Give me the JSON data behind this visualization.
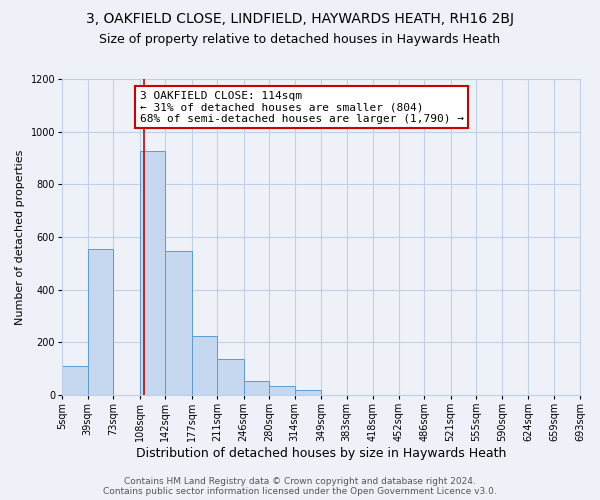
{
  "title": "3, OAKFIELD CLOSE, LINDFIELD, HAYWARDS HEATH, RH16 2BJ",
  "subtitle": "Size of property relative to detached houses in Haywards Heath",
  "xlabel": "Distribution of detached houses by size in Haywards Heath",
  "ylabel": "Number of detached properties",
  "bar_edges": [
    5,
    39,
    73,
    108,
    142,
    177,
    211,
    246,
    280,
    314,
    349,
    383,
    418,
    452,
    486,
    521,
    555,
    590,
    624,
    659,
    693
  ],
  "bar_heights": [
    110,
    555,
    0,
    925,
    545,
    225,
    135,
    55,
    35,
    20,
    0,
    0,
    0,
    0,
    0,
    0,
    0,
    0,
    0,
    0
  ],
  "bar_color": "#c5d8f0",
  "bar_edgecolor": "#5b9bd5",
  "grid_color": "#c0d0e8",
  "background_color": "#eef2f8",
  "property_line_x": 114,
  "property_line_color": "#cc0000",
  "annotation_text": "3 OAKFIELD CLOSE: 114sqm\n← 31% of detached houses are smaller (804)\n68% of semi-detached houses are larger (1,790) →",
  "annotation_box_edgecolor": "#cc0000",
  "annotation_box_facecolor": "#ffffff",
  "ylim": [
    0,
    1200
  ],
  "xlim_min": 5,
  "xlim_max": 693,
  "tick_labels": [
    "5sqm",
    "39sqm",
    "73sqm",
    "108sqm",
    "142sqm",
    "177sqm",
    "211sqm",
    "246sqm",
    "280sqm",
    "314sqm",
    "349sqm",
    "383sqm",
    "418sqm",
    "452sqm",
    "486sqm",
    "521sqm",
    "555sqm",
    "590sqm",
    "624sqm",
    "659sqm",
    "693sqm"
  ],
  "footer_text": "Contains HM Land Registry data © Crown copyright and database right 2024.\nContains public sector information licensed under the Open Government Licence v3.0.",
  "title_fontsize": 10,
  "subtitle_fontsize": 9,
  "xlabel_fontsize": 9,
  "ylabel_fontsize": 8,
  "tick_fontsize": 7,
  "annotation_fontsize": 8,
  "footer_fontsize": 6.5
}
